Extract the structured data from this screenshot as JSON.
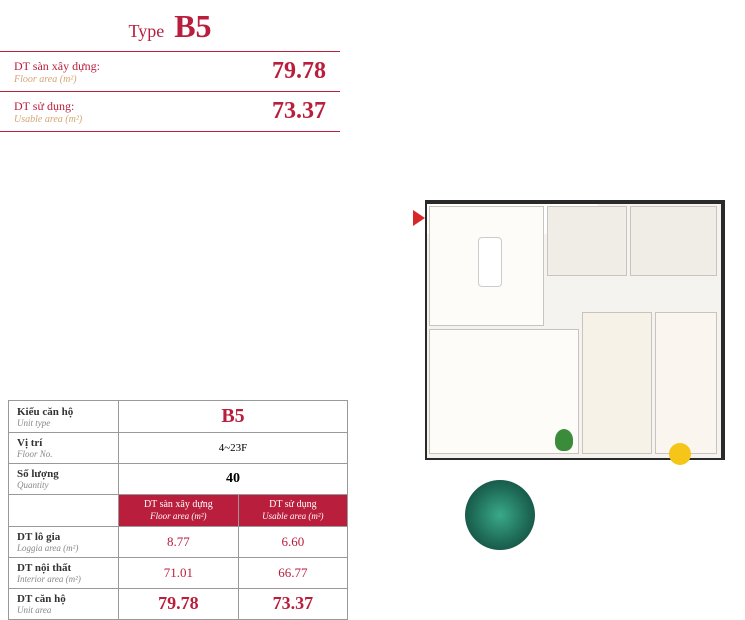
{
  "header": {
    "type_label": "Type",
    "type_code": "B5",
    "rows": [
      {
        "vn": "DT sàn xây dựng:",
        "en": "Floor area (m²)",
        "value": "79.78"
      },
      {
        "vn": "DT sử dụng:",
        "en": "Usable area (m²)",
        "value": "73.37"
      }
    ],
    "colors": {
      "accent": "#b91e3c",
      "muted": "#d4a574"
    }
  },
  "spec_table": {
    "rows_top": [
      {
        "vn": "Kiểu căn hộ",
        "en": "Unit type",
        "value": "B5",
        "big": true
      },
      {
        "vn": "Vị trí",
        "en": "Floor No.",
        "value": "4~23F",
        "big": false
      },
      {
        "vn": "Số lượng",
        "en": "Quantity",
        "value": "40",
        "big": false
      }
    ],
    "col_headers": [
      {
        "vn": "DT sàn xây dựng",
        "en": "Floor area (m²)"
      },
      {
        "vn": "DT sử dụng",
        "en": "Usable area (m²)"
      }
    ],
    "rows_bottom": [
      {
        "vn": "DT lô gia",
        "en": "Loggia area (m²)",
        "v1": "8.77",
        "v2": "6.60"
      },
      {
        "vn": "DT nội thất",
        "en": "Interior area (m²)",
        "v1": "71.01",
        "v2": "66.77"
      },
      {
        "vn": "DT căn hộ",
        "en": "Unit area",
        "v1": "79.78",
        "v2": "73.37",
        "bold": true
      }
    ]
  },
  "floorplan": {
    "type": "floor-plan",
    "background_color": "#f5f3ef",
    "frame_color": "#2a2a2a",
    "entry_marker_color": "#d62828",
    "rooms": [
      {
        "name": "kitchen-dining",
        "color": "#fdfcf9"
      },
      {
        "name": "bathroom-1",
        "color": "#f0ede6"
      },
      {
        "name": "bathroom-2",
        "color": "#f0ede6"
      },
      {
        "name": "living-room",
        "color": "#fdfcf9",
        "rug_color": "#1e6b57"
      },
      {
        "name": "bedroom-1",
        "color": "#f7f2e8"
      },
      {
        "name": "bedroom-2",
        "color": "#faf6ef"
      }
    ],
    "accent_circle_color": "#f5c518",
    "plant_color": "#3a8c3a"
  }
}
